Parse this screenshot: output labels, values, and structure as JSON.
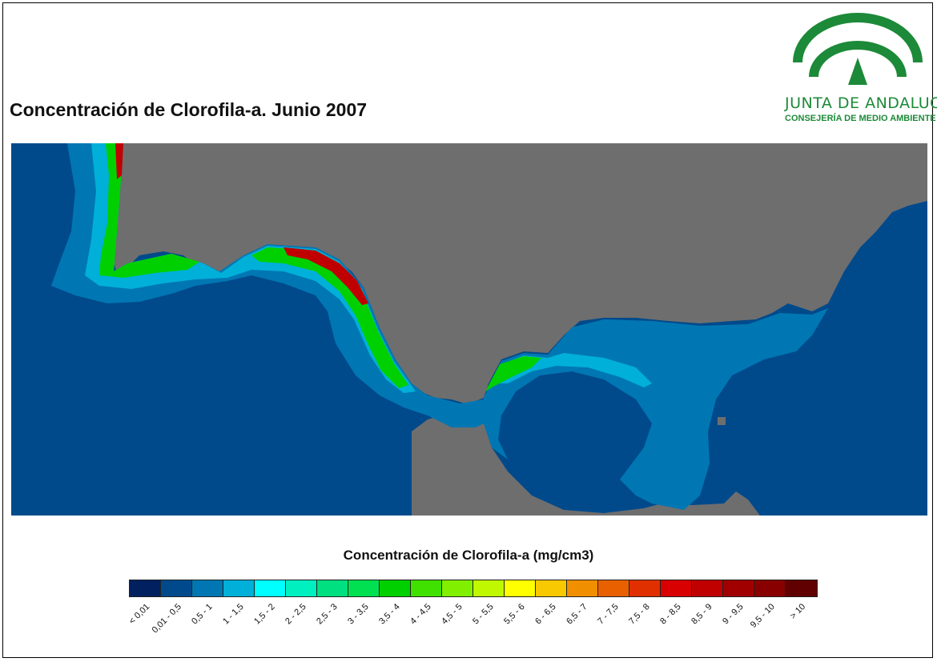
{
  "title": "Concentración de Clorofila-a. Junio 2007",
  "logo": {
    "name": "JUNTA DE ANDALUCIA",
    "subtitle": "CONSEJERÍA DE MEDIO AMBIENTE",
    "color": "#1c8a38"
  },
  "map": {
    "land_color": "#6e6e6e",
    "sea_color": "#004a8c"
  },
  "legend": {
    "title": "Concentración de Clorofila-a (mg/cm3)",
    "classes": [
      {
        "label": "< 0,01",
        "color": "#002060"
      },
      {
        "label": "0,01 - 0,5",
        "color": "#004a8c"
      },
      {
        "label": "0,5 - 1",
        "color": "#0077b3"
      },
      {
        "label": "1 - 1,5",
        "color": "#00b0d8"
      },
      {
        "label": "1,5 - 2",
        "color": "#00ffff"
      },
      {
        "label": "2 - 2,5",
        "color": "#00f0c0"
      },
      {
        "label": "2,5 - 3",
        "color": "#00e080"
      },
      {
        "label": "3 - 3,5",
        "color": "#00e050"
      },
      {
        "label": "3,5 - 4",
        "color": "#00d000"
      },
      {
        "label": "4 - 4,5",
        "color": "#40e000"
      },
      {
        "label": "4,5 - 5",
        "color": "#80f000"
      },
      {
        "label": "5 - 5,5",
        "color": "#c0f800"
      },
      {
        "label": "5,5 - 6",
        "color": "#ffff00"
      },
      {
        "label": "6 - 6,5",
        "color": "#f8c800"
      },
      {
        "label": "6,5 - 7",
        "color": "#f09000"
      },
      {
        "label": "7 - 7,5",
        "color": "#e86000"
      },
      {
        "label": "7,5 - 8",
        "color": "#e03000"
      },
      {
        "label": "8 - 8,5",
        "color": "#d80000"
      },
      {
        "label": "8,5 - 9",
        "color": "#c00000"
      },
      {
        "label": "9 - 9,5",
        "color": "#a00000"
      },
      {
        "label": "9,5 - 10",
        "color": "#880000"
      },
      {
        "label": "> 10",
        "color": "#600000"
      }
    ]
  }
}
